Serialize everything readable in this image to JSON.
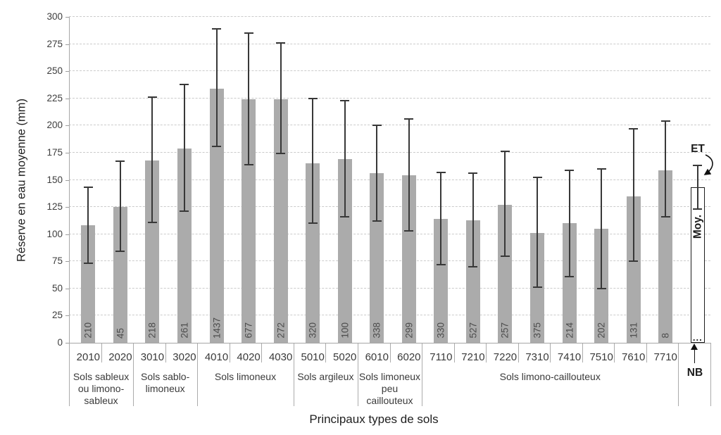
{
  "chart_data": {
    "type": "bar",
    "title": "",
    "xlabel": "Principaux types de sols",
    "ylabel": "Réserve en eau moyenne (mm)",
    "ylim": [
      0,
      300
    ],
    "yticks": [
      0,
      25,
      50,
      75,
      100,
      125,
      150,
      175,
      200,
      225,
      250,
      275,
      300
    ],
    "grid": "horizontal-dashed",
    "legend_position": "right",
    "bar_color": "#ababab",
    "error_color": "#383838",
    "bars": [
      {
        "code": "2010",
        "mean": 108,
        "err_low": 73,
        "err_high": 143,
        "nb": "210"
      },
      {
        "code": "2020",
        "mean": 125,
        "err_low": 84,
        "err_high": 167,
        "nb": "45"
      },
      {
        "code": "3010",
        "mean": 168,
        "err_low": 111,
        "err_high": 226,
        "nb": "218"
      },
      {
        "code": "3020",
        "mean": 179,
        "err_low": 121,
        "err_high": 238,
        "nb": "261"
      },
      {
        "code": "4010",
        "mean": 234,
        "err_low": 181,
        "err_high": 289,
        "nb": "1437"
      },
      {
        "code": "4020",
        "mean": 224,
        "err_low": 164,
        "err_high": 285,
        "nb": "677"
      },
      {
        "code": "4030",
        "mean": 224,
        "err_low": 174,
        "err_high": 276,
        "nb": "272"
      },
      {
        "code": "5010",
        "mean": 165,
        "err_low": 110,
        "err_high": 225,
        "nb": "320"
      },
      {
        "code": "5020",
        "mean": 169,
        "err_low": 116,
        "err_high": 223,
        "nb": "100"
      },
      {
        "code": "6010",
        "mean": 156,
        "err_low": 112,
        "err_high": 200,
        "nb": "338"
      },
      {
        "code": "6020",
        "mean": 154,
        "err_low": 103,
        "err_high": 206,
        "nb": "299"
      },
      {
        "code": "7110",
        "mean": 114,
        "err_low": 72,
        "err_high": 157,
        "nb": "330"
      },
      {
        "code": "7210",
        "mean": 113,
        "err_low": 70,
        "err_high": 156,
        "nb": "527"
      },
      {
        "code": "7220",
        "mean": 127,
        "err_low": 80,
        "err_high": 176,
        "nb": "257"
      },
      {
        "code": "7310",
        "mean": 101,
        "err_low": 51,
        "err_high": 152,
        "nb": "375"
      },
      {
        "code": "7410",
        "mean": 110,
        "err_low": 61,
        "err_high": 159,
        "nb": "214"
      },
      {
        "code": "7510",
        "mean": 105,
        "err_low": 50,
        "err_high": 160,
        "nb": "202"
      },
      {
        "code": "7610",
        "mean": 135,
        "err_low": 75,
        "err_high": 197,
        "nb": "131"
      },
      {
        "code": "7710",
        "mean": 159,
        "err_low": 116,
        "err_high": 204,
        "nb": "8"
      }
    ],
    "groups": [
      {
        "label": "Sols sableux ou limono-sableux",
        "lines": [
          "Sols sableux",
          "ou limono-",
          "sableux"
        ],
        "count": 2
      },
      {
        "label": "Sols sablo-limoneux",
        "lines": [
          "Sols sablo-",
          "limoneux"
        ],
        "count": 2
      },
      {
        "label": "Sols limoneux",
        "lines": [
          "Sols limoneux"
        ],
        "count": 3
      },
      {
        "label": "Sols argileux",
        "lines": [
          "Sols argileux"
        ],
        "count": 2
      },
      {
        "label": "Sols limoneux peu caillouteux",
        "lines": [
          "Sols limoneux",
          "peu",
          "caillouteux"
        ],
        "count": 2
      },
      {
        "label": "Sols limono-caillouteux",
        "lines": [
          "Sols limono-caillouteux"
        ],
        "count": 8
      }
    ],
    "legend": {
      "et_label": "ET",
      "moy_label": "Moy.",
      "nb_label": "NB",
      "dots": "...",
      "bar_top": 143,
      "err_low": 123,
      "err_high": 163
    }
  },
  "colors": {
    "bar": "#ababab",
    "error_bar": "#383838",
    "gridline": "#cbcbcb",
    "axis": "#a7a7a7",
    "text": "#3a3a3a"
  }
}
